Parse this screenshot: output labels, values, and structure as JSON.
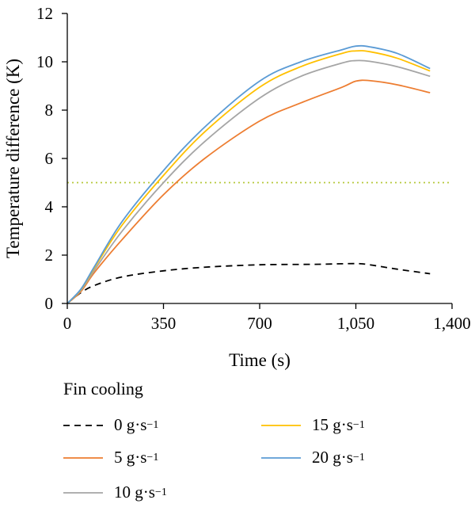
{
  "chart_data": {
    "type": "line",
    "xlabel": "Time (s)",
    "ylabel": "Temperature difference (K)",
    "xlim": [
      0,
      1400
    ],
    "ylim": [
      0,
      12
    ],
    "xticks": [
      0,
      350,
      700,
      1050,
      1400
    ],
    "xtick_labels": [
      "0",
      "350",
      "700",
      "1,050",
      "1,400"
    ],
    "yticks": [
      0,
      2,
      4,
      6,
      8,
      10,
      12
    ],
    "ytick_labels": [
      "0",
      "2",
      "4",
      "6",
      "8",
      "10",
      "12"
    ],
    "grid": false,
    "reference_line": {
      "y": 5,
      "color": "#b5c93a"
    },
    "legend": {
      "title": "Fin cooling",
      "placement": "below"
    },
    "series": [
      {
        "name": "0 g·s",
        "unit_sup": "−1",
        "color": "#000000",
        "dash": "dashed",
        "x": [
          0,
          50,
          100,
          200,
          350,
          500,
          700,
          900,
          1050,
          1100,
          1200,
          1320
        ],
        "y": [
          0,
          0.45,
          0.75,
          1.1,
          1.35,
          1.5,
          1.6,
          1.62,
          1.65,
          1.6,
          1.42,
          1.23
        ]
      },
      {
        "name": "5 g·s",
        "unit_sup": "−1",
        "color": "#ed7d31",
        "dash": "solid",
        "x": [
          0,
          50,
          100,
          200,
          350,
          500,
          700,
          850,
          1000,
          1050,
          1100,
          1200,
          1320
        ],
        "y": [
          0,
          0.5,
          1.3,
          2.65,
          4.5,
          6.0,
          7.55,
          8.3,
          8.95,
          9.2,
          9.22,
          9.05,
          8.72
        ]
      },
      {
        "name": "10 g·s",
        "unit_sup": "−1",
        "color": "#a5a5a5",
        "dash": "solid",
        "x": [
          0,
          50,
          100,
          200,
          350,
          500,
          700,
          850,
          1000,
          1050,
          1100,
          1200,
          1320
        ],
        "y": [
          0,
          0.55,
          1.4,
          3.0,
          5.0,
          6.7,
          8.5,
          9.4,
          9.95,
          10.05,
          10.02,
          9.8,
          9.4
        ]
      },
      {
        "name": "15 g·s",
        "unit_sup": "−1",
        "color": "#ffc000",
        "dash": "solid",
        "x": [
          0,
          50,
          100,
          200,
          350,
          500,
          700,
          850,
          1000,
          1050,
          1100,
          1200,
          1320
        ],
        "y": [
          0,
          0.58,
          1.5,
          3.25,
          5.3,
          7.1,
          8.95,
          9.8,
          10.35,
          10.45,
          10.42,
          10.15,
          9.62
        ]
      },
      {
        "name": "20 g·s",
        "unit_sup": "−1",
        "color": "#5b9bd5",
        "dash": "solid",
        "x": [
          0,
          50,
          100,
          200,
          350,
          500,
          700,
          850,
          1000,
          1050,
          1100,
          1200,
          1320
        ],
        "y": [
          0,
          0.6,
          1.55,
          3.4,
          5.5,
          7.3,
          9.2,
          10.0,
          10.5,
          10.65,
          10.62,
          10.35,
          9.72
        ]
      }
    ]
  }
}
